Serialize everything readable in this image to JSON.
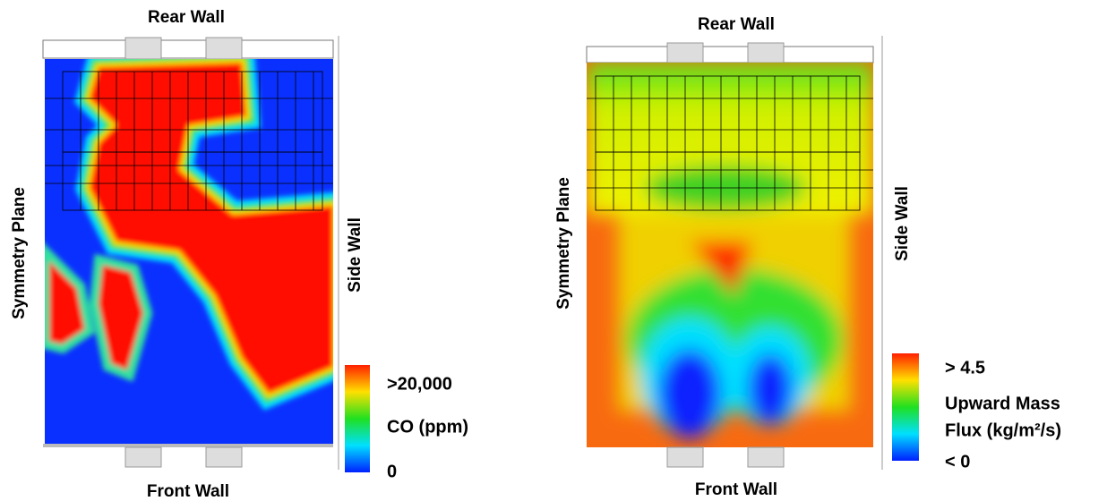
{
  "panels": [
    {
      "top_label": "Rear Wall",
      "bottom_label": "Front Wall",
      "left_label": "Symmetry Plane",
      "right_label": "Side Wall",
      "colorbar": {
        "max_label": ">20,000",
        "title_lines": [
          "CO (ppm)"
        ],
        "min_label": "0"
      }
    },
    {
      "top_label": "Rear Wall",
      "bottom_label": "Front Wall",
      "left_label": "Symmetry Plane",
      "right_label": "Side Wall",
      "colorbar": {
        "max_label": "> 4.5",
        "title_lines": [
          "Upward Mass",
          "Flux (kg/m²/s)"
        ],
        "min_label": "< 0"
      }
    }
  ]
}
